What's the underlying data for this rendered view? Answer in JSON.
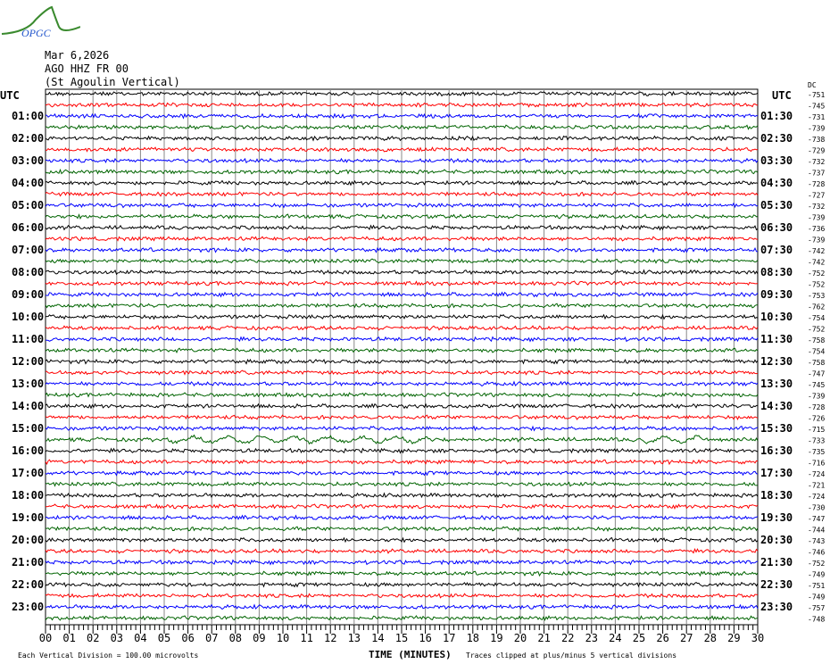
{
  "logo": {
    "text": "OPGC",
    "colors": {
      "mountain": "#3a8a2e",
      "text": "#2255cc"
    }
  },
  "header": {
    "date": "Mar 6,2026",
    "station": "AGO HHZ FR 00",
    "site": "(St Agoulin Vertical)"
  },
  "chart_data": {
    "type": "line",
    "subtype": "helicorder",
    "left_axis_title": "UTC",
    "right_axis_title": "UTC",
    "offset_title": "DC",
    "left_labels": [
      "01:00",
      "02:00",
      "03:00",
      "04:00",
      "05:00",
      "06:00",
      "07:00",
      "08:00",
      "09:00",
      "10:00",
      "11:00",
      "12:00",
      "13:00",
      "14:00",
      "15:00",
      "16:00",
      "17:00",
      "18:00",
      "19:00",
      "20:00",
      "21:00",
      "22:00",
      "23:00"
    ],
    "right_labels": [
      "01:30",
      "02:30",
      "03:30",
      "04:30",
      "05:30",
      "06:30",
      "07:30",
      "08:30",
      "09:30",
      "10:30",
      "11:30",
      "12:30",
      "13:30",
      "14:30",
      "15:30",
      "16:30",
      "17:30",
      "18:30",
      "19:30",
      "20:30",
      "21:30",
      "22:30",
      "23:30"
    ],
    "dc_offsets": [
      -751,
      -745,
      -731,
      -739,
      -738,
      -729,
      -732,
      -737,
      -728,
      -727,
      -732,
      -739,
      -736,
      -739,
      -742,
      -742,
      -752,
      -752,
      -753,
      -762,
      -754,
      -752,
      -758,
      -754,
      -758,
      -747,
      -745,
      -739,
      -728,
      -726,
      -715,
      -733,
      -735,
      -716,
      -724,
      -721,
      -724,
      -730,
      -747,
      -744,
      -743,
      -746,
      -752,
      -749,
      -751,
      -749,
      -757,
      -748
    ],
    "trace_colors": [
      "#000000",
      "#ff0000",
      "#0000ff",
      "#006400"
    ],
    "trace_count": 48,
    "minutes_per_trace": 30,
    "xlim": [
      0,
      30
    ],
    "x_ticks": [
      "00",
      "01",
      "02",
      "03",
      "04",
      "05",
      "06",
      "07",
      "08",
      "09",
      "10",
      "11",
      "12",
      "13",
      "14",
      "15",
      "16",
      "17",
      "18",
      "19",
      "20",
      "21",
      "22",
      "23",
      "24",
      "25",
      "26",
      "27",
      "28",
      "29",
      "30"
    ],
    "xlabel": "TIME (MINUTES)",
    "grid": true,
    "scale_note": "Each Vertical Division =  100.00 microvolts",
    "clip_note": "Traces clipped at plus/minus 5 vertical divisions"
  }
}
